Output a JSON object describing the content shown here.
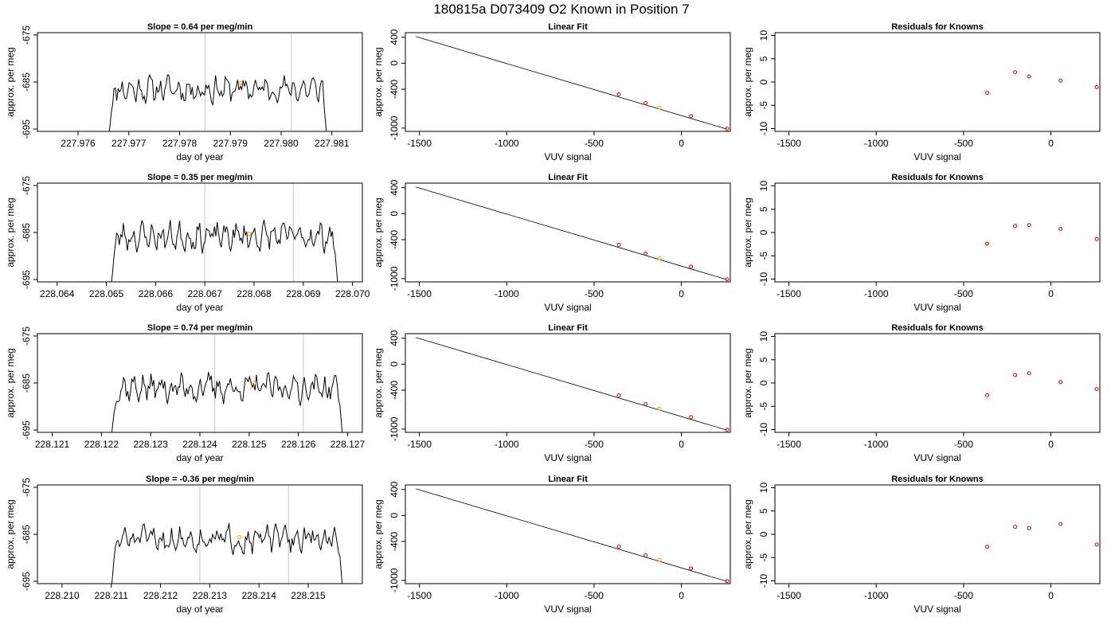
{
  "page_title": "180815a      D073409   O2 Known in Position  7",
  "colors": {
    "trace": "#000000",
    "marker_orange": "#ffa500",
    "residual_red": "#e00000",
    "gridline": "#c8c8c8",
    "fit_line": "#000000"
  },
  "chart_data": [
    {
      "type": "line",
      "row": 0,
      "panel": "timeseries",
      "title": "Slope =  0.64  per meg/min",
      "xlabel": "day of year",
      "ylabel": "approx. per meg",
      "xlim": [
        227.9752,
        227.9816
      ],
      "ylim": [
        -695.5,
        -674.5
      ],
      "xticks": [
        "227.976",
        "227.977",
        "227.978",
        "227.979",
        "227.980",
        "227.981"
      ],
      "yticks": [
        "-675",
        "-685",
        "-695"
      ],
      "vlines": [
        227.9785,
        227.9802
      ],
      "series": [
        {
          "x_start": 227.9766,
          "x_end": 227.9809,
          "n_points": 160,
          "base": -686.5,
          "amplitude": 2.8,
          "ramp_start": -697,
          "seed": 11
        }
      ],
      "marker": {
        "x": 227.9792,
        "y": -685.2
      }
    },
    {
      "type": "scatter",
      "row": 0,
      "panel": "fit",
      "title": "Linear Fit",
      "xlabel": "VUV signal",
      "ylabel": "approx. per meg",
      "xlim": [
        -1580,
        280
      ],
      "ylim": [
        -1050,
        470
      ],
      "xticks": [
        "-1500",
        "-1000",
        "-500",
        "0"
      ],
      "yticks": [
        "400",
        "0",
        "-400",
        "-1000"
      ],
      "line": [
        [
          -1520,
          410
        ],
        [
          260,
          -1015
        ]
      ],
      "points": [
        [
          -358,
          -480
        ],
        [
          -205,
          -615
        ],
        [
          55,
          -815
        ],
        [
          262,
          -1010
        ]
      ],
      "highlight": [
        -125,
        -687
      ]
    },
    {
      "type": "scatter",
      "row": 0,
      "panel": "residuals",
      "title": "Residuals for Knowns",
      "xlabel": "VUV signal",
      "ylabel": "approx. per meg",
      "xlim": [
        -1580,
        280
      ],
      "ylim": [
        -10.6,
        10.6
      ],
      "xticks": [
        "-1500",
        "-1000",
        "-500",
        "0"
      ],
      "yticks": [
        "10",
        "5",
        "0",
        "-5",
        "-10"
      ],
      "points": [
        [
          -365,
          -2.3
        ],
        [
          -205,
          2.1
        ],
        [
          -125,
          1.2
        ],
        [
          55,
          0.3
        ],
        [
          262,
          -1.1
        ]
      ]
    },
    {
      "type": "line",
      "row": 1,
      "panel": "timeseries",
      "title": "Slope =  0.35  per meg/min",
      "xlabel": "day of year",
      "ylabel": "approx. per meg",
      "xlim": [
        228.0636,
        228.0702
      ],
      "ylim": [
        -695.5,
        -674.5
      ],
      "xticks": [
        "228.064",
        "228.065",
        "228.066",
        "228.067",
        "228.068",
        "228.069",
        "228.070"
      ],
      "yticks": [
        "-675",
        "-685",
        "-695"
      ],
      "vlines": [
        228.067,
        228.0688
      ],
      "series": [
        {
          "x_start": 228.0651,
          "x_end": 228.0697,
          "n_points": 170,
          "base": -685.8,
          "amplitude": 2.9,
          "ramp_start": -696,
          "seed": 23
        }
      ],
      "marker": {
        "x": 228.0679,
        "y": -685.3
      }
    },
    {
      "type": "scatter",
      "row": 1,
      "panel": "fit",
      "title": "Linear Fit",
      "xlabel": "VUV signal",
      "ylabel": "approx. per meg",
      "xlim": [
        -1580,
        280
      ],
      "ylim": [
        -1050,
        470
      ],
      "xticks": [
        "-1500",
        "-1000",
        "-500",
        "0"
      ],
      "yticks": [
        "400",
        "0",
        "-400",
        "-1000"
      ],
      "line": [
        [
          -1520,
          410
        ],
        [
          260,
          -1015
        ]
      ],
      "points": [
        [
          -358,
          -480
        ],
        [
          -205,
          -615
        ],
        [
          55,
          -815
        ],
        [
          262,
          -1010
        ]
      ],
      "highlight": [
        -125,
        -687
      ]
    },
    {
      "type": "scatter",
      "row": 1,
      "panel": "residuals",
      "title": "Residuals for Knowns",
      "xlabel": "VUV signal",
      "ylabel": "approx. per meg",
      "xlim": [
        -1580,
        280
      ],
      "ylim": [
        -10.6,
        10.6
      ],
      "xticks": [
        "-1500",
        "-1000",
        "-500",
        "0"
      ],
      "yticks": [
        "10",
        "5",
        "0",
        "-5",
        "-10"
      ],
      "points": [
        [
          -365,
          -2.4
        ],
        [
          -205,
          1.4
        ],
        [
          -125,
          1.6
        ],
        [
          55,
          0.8
        ],
        [
          262,
          -1.4
        ]
      ]
    },
    {
      "type": "line",
      "row": 2,
      "panel": "timeseries",
      "title": "Slope =  0.74  per meg/min",
      "xlabel": "day of year",
      "ylabel": "approx. per meg",
      "xlim": [
        228.1207,
        228.1273
      ],
      "ylim": [
        -695.5,
        -674.5
      ],
      "xticks": [
        "228.121",
        "228.122",
        "228.123",
        "228.124",
        "228.125",
        "228.126",
        "228.127"
      ],
      "yticks": [
        "-675",
        "-685",
        "-695"
      ],
      "vlines": [
        228.1243,
        228.1261
      ],
      "series": [
        {
          "x_start": 228.1222,
          "x_end": 228.1269,
          "n_points": 170,
          "base": -686.0,
          "amplitude": 3.0,
          "ramp_start": -697,
          "seed": 37
        }
      ],
      "marker": {
        "x": 228.1251,
        "y": -685.0
      }
    },
    {
      "type": "scatter",
      "row": 2,
      "panel": "fit",
      "title": "Linear Fit",
      "xlabel": "VUV signal",
      "ylabel": "approx. per meg",
      "xlim": [
        -1580,
        280
      ],
      "ylim": [
        -1050,
        470
      ],
      "xticks": [
        "-1500",
        "-1000",
        "-500",
        "0"
      ],
      "yticks": [
        "400",
        "0",
        "-400",
        "-1000"
      ],
      "line": [
        [
          -1520,
          410
        ],
        [
          260,
          -1015
        ]
      ],
      "points": [
        [
          -358,
          -480
        ],
        [
          -205,
          -615
        ],
        [
          55,
          -815
        ],
        [
          262,
          -1010
        ]
      ],
      "highlight": [
        -125,
        -687
      ]
    },
    {
      "type": "scatter",
      "row": 2,
      "panel": "residuals",
      "title": "Residuals for Knowns",
      "xlabel": "VUV signal",
      "ylabel": "approx. per meg",
      "xlim": [
        -1580,
        280
      ],
      "ylim": [
        -10.6,
        10.6
      ],
      "xticks": [
        "-1500",
        "-1000",
        "-500",
        "0"
      ],
      "yticks": [
        "10",
        "5",
        "0",
        "-5",
        "-10"
      ],
      "points": [
        [
          -365,
          -2.6
        ],
        [
          -205,
          1.7
        ],
        [
          -125,
          2.1
        ],
        [
          55,
          0.2
        ],
        [
          262,
          -1.3
        ]
      ]
    },
    {
      "type": "line",
      "row": 3,
      "panel": "timeseries",
      "title": "Slope =  -0.36  per meg/min",
      "xlabel": "day of year",
      "ylabel": "approx. per meg",
      "xlim": [
        228.2095,
        228.2161
      ],
      "ylim": [
        -695.5,
        -674.5
      ],
      "xticks": [
        "228.210",
        "228.211",
        "228.212",
        "228.213",
        "228.214",
        "228.215"
      ],
      "yticks": [
        "-675",
        "-685",
        "-695"
      ],
      "vlines": [
        228.2128,
        228.2146
      ],
      "series": [
        {
          "x_start": 228.211,
          "x_end": 228.2157,
          "n_points": 170,
          "base": -686.0,
          "amplitude": 2.7,
          "ramp_start": -697,
          "seed": 51
        }
      ],
      "marker": {
        "x": 228.2136,
        "y": -685.6
      }
    },
    {
      "type": "scatter",
      "row": 3,
      "panel": "fit",
      "title": "Linear Fit",
      "xlabel": "VUV signal",
      "ylabel": "approx. per meg",
      "xlim": [
        -1580,
        280
      ],
      "ylim": [
        -1050,
        470
      ],
      "xticks": [
        "-1500",
        "-1000",
        "-500",
        "0"
      ],
      "yticks": [
        "400",
        "0",
        "-400",
        "-1000"
      ],
      "line": [
        [
          -1520,
          410
        ],
        [
          260,
          -1015
        ]
      ],
      "points": [
        [
          -358,
          -480
        ],
        [
          -205,
          -615
        ],
        [
          55,
          -815
        ],
        [
          262,
          -1010
        ]
      ],
      "highlight": [
        -125,
        -687
      ]
    },
    {
      "type": "scatter",
      "row": 3,
      "panel": "residuals",
      "title": "Residuals for Knowns",
      "xlabel": "VUV signal",
      "ylabel": "approx. per meg",
      "xlim": [
        -1580,
        280
      ],
      "ylim": [
        -10.6,
        10.6
      ],
      "xticks": [
        "-1500",
        "-1000",
        "-500",
        "0"
      ],
      "yticks": [
        "10",
        "5",
        "0",
        "-5",
        "-10"
      ],
      "points": [
        [
          -365,
          -2.7
        ],
        [
          -205,
          1.6
        ],
        [
          -125,
          1.3
        ],
        [
          55,
          2.2
        ],
        [
          262,
          -2.2
        ]
      ]
    }
  ]
}
